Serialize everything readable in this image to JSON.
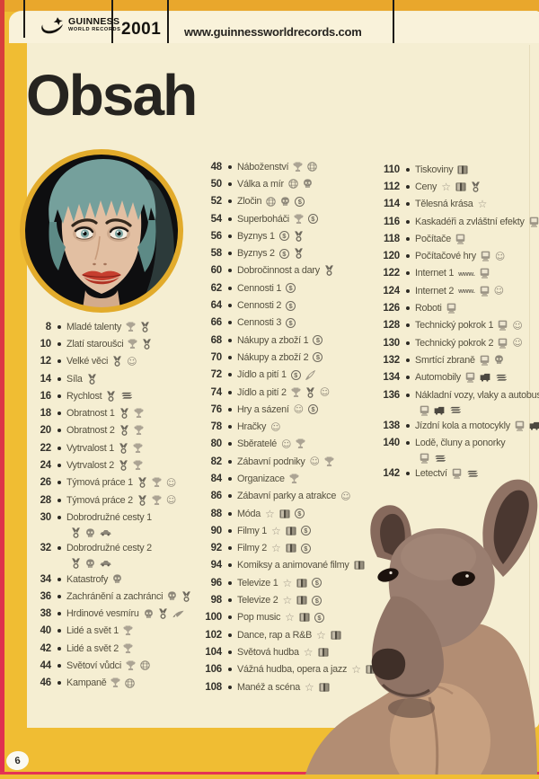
{
  "header": {
    "logo": {
      "line1": "GUINNESS",
      "line2": "WORLD RECORDS"
    },
    "year": "2001",
    "url": "www.guinnessworldrecords.com"
  },
  "page": {
    "title": "Obsah",
    "number": "6"
  },
  "colors": {
    "page_yellow": "#f0bd33",
    "cream": "#f5eed2",
    "red_edge": "#d8403a",
    "gold_ring": "#e2ab2b"
  },
  "toc": {
    "columns": [
      {
        "entries": [
          {
            "page": "8",
            "label": "Mladé talenty",
            "icons": [
              "trophy",
              "medal"
            ]
          },
          {
            "page": "10",
            "label": "Zlatí staroušci",
            "icons": [
              "trophy",
              "medal"
            ]
          },
          {
            "page": "12",
            "label": "Velké věci",
            "icons": [
              "medal",
              "smiley"
            ]
          },
          {
            "page": "14",
            "label": "Síla",
            "icons": [
              "medal"
            ]
          },
          {
            "page": "16",
            "label": "Rychlost",
            "icons": [
              "medal",
              "speed"
            ]
          },
          {
            "page": "18",
            "label": "Obratnost 1",
            "icons": [
              "medal",
              "trophy"
            ]
          },
          {
            "page": "20",
            "label": "Obratnost 2",
            "icons": [
              "medal",
              "trophy"
            ]
          },
          {
            "page": "22",
            "label": "Vytrvalost 1",
            "icons": [
              "medal",
              "trophy"
            ]
          },
          {
            "page": "24",
            "label": "Vytrvalost 2",
            "icons": [
              "medal",
              "trophy"
            ]
          },
          {
            "page": "26",
            "label": "Týmová práce 1",
            "icons": [
              "medal",
              "trophy",
              "smiley"
            ]
          },
          {
            "page": "28",
            "label": "Týmová práce 2",
            "icons": [
              "medal",
              "trophy",
              "smiley"
            ]
          },
          {
            "page": "30",
            "label": "Dobrodružné cesty 1",
            "icons": [],
            "icons_line2": [
              "medal",
              "skull",
              "car"
            ]
          },
          {
            "page": "32",
            "label": "Dobrodružné cesty 2",
            "icons": [],
            "icons_line2": [
              "medal",
              "skull",
              "car"
            ]
          },
          {
            "page": "34",
            "label": "Katastrofy",
            "icons": [
              "skull"
            ]
          },
          {
            "page": "36",
            "label": "Zachránění a zachránci",
            "icons": [
              "skull",
              "medal"
            ]
          },
          {
            "page": "38",
            "label": "Hrdinové vesmíru",
            "icons": [
              "skull",
              "medal",
              "rocket"
            ]
          },
          {
            "page": "40",
            "label": "Lidé a svět 1",
            "icons": [
              "trophy"
            ]
          },
          {
            "page": "42",
            "label": "Lidé a svět 2",
            "icons": [
              "trophy"
            ]
          },
          {
            "page": "44",
            "label": "Světoví vůdci",
            "icons": [
              "trophy",
              "globe"
            ]
          },
          {
            "page": "46",
            "label": "Kampaně",
            "icons": [
              "trophy",
              "globe"
            ]
          }
        ]
      },
      {
        "entries": [
          {
            "page": "48",
            "label": "Náboženství",
            "icons": [
              "trophy",
              "globe"
            ]
          },
          {
            "page": "50",
            "label": "Válka a mír",
            "icons": [
              "globe",
              "skull"
            ]
          },
          {
            "page": "52",
            "label": "Zločin",
            "icons": [
              "globe",
              "skull",
              "dollar"
            ]
          },
          {
            "page": "54",
            "label": "Superboháči",
            "icons": [
              "trophy",
              "dollar"
            ]
          },
          {
            "page": "56",
            "label": "Byznys 1",
            "icons": [
              "dollar",
              "medal"
            ]
          },
          {
            "page": "58",
            "label": "Byznys 2",
            "icons": [
              "dollar",
              "medal"
            ]
          },
          {
            "page": "60",
            "label": "Dobročinnost a dary",
            "icons": [
              "medal"
            ]
          },
          {
            "page": "62",
            "label": "Cennosti 1",
            "icons": [
              "dollar"
            ]
          },
          {
            "page": "64",
            "label": "Cennosti 2",
            "icons": [
              "dollar"
            ]
          },
          {
            "page": "66",
            "label": "Cennosti 3",
            "icons": [
              "dollar"
            ]
          },
          {
            "page": "68",
            "label": "Nákupy a zboží 1",
            "icons": [
              "dollar"
            ]
          },
          {
            "page": "70",
            "label": "Nákupy a zboží 2",
            "icons": [
              "dollar"
            ]
          },
          {
            "page": "72",
            "label": "Jídlo a pití 1",
            "icons": [
              "dollar",
              "pen"
            ]
          },
          {
            "page": "74",
            "label": "Jídlo a pití 2",
            "icons": [
              "trophy",
              "medal",
              "smiley"
            ]
          },
          {
            "page": "76",
            "label": "Hry a sázení",
            "icons": [
              "smiley",
              "dollar"
            ]
          },
          {
            "page": "78",
            "label": "Hračky",
            "icons": [
              "smiley"
            ]
          },
          {
            "page": "80",
            "label": "Sběratelé",
            "icons": [
              "smiley",
              "trophy"
            ]
          },
          {
            "page": "82",
            "label": "Zábavní podniky",
            "icons": [
              "smiley",
              "trophy"
            ]
          },
          {
            "page": "84",
            "label": "Organizace",
            "icons": [
              "trophy"
            ]
          },
          {
            "page": "86",
            "label": "Zábavní parky a atrakce",
            "icons": [
              "smiley"
            ]
          },
          {
            "page": "88",
            "label": "Móda",
            "icons": [
              "star",
              "film",
              "dollar"
            ]
          },
          {
            "page": "90",
            "label": "Filmy 1",
            "icons": [
              "star",
              "film",
              "dollar"
            ]
          },
          {
            "page": "92",
            "label": "Filmy 2",
            "icons": [
              "star",
              "film",
              "dollar"
            ]
          },
          {
            "page": "94",
            "label": "Komiksy a animované filmy",
            "icons": [
              "film"
            ]
          },
          {
            "page": "96",
            "label": "Televize 1",
            "icons": [
              "star",
              "film",
              "dollar"
            ]
          },
          {
            "page": "98",
            "label": "Televize 2",
            "icons": [
              "star",
              "film",
              "dollar"
            ]
          },
          {
            "page": "100",
            "label": "Pop music",
            "icons": [
              "star",
              "film",
              "dollar"
            ]
          },
          {
            "page": "102",
            "label": "Dance, rap a R&B",
            "icons": [
              "star",
              "film"
            ]
          },
          {
            "page": "104",
            "label": "Světová hudba",
            "icons": [
              "star",
              "film"
            ]
          },
          {
            "page": "106",
            "label": "Vážná hudba, opera a jazz",
            "icons": [
              "star",
              "film"
            ]
          },
          {
            "page": "108",
            "label": "Manéž a scéna",
            "icons": [
              "star",
              "film"
            ]
          }
        ]
      },
      {
        "entries": [
          {
            "page": "110",
            "label": "Tiskoviny",
            "icons": [
              "film"
            ]
          },
          {
            "page": "112",
            "label": "Ceny",
            "icons": [
              "star",
              "film",
              "medal"
            ]
          },
          {
            "page": "114",
            "label": "Tělesná krása",
            "icons": [
              "star"
            ]
          },
          {
            "page": "116",
            "label": "Kaskadéři a zvláštní efekty",
            "icons": [
              "computer",
              "film"
            ]
          },
          {
            "page": "118",
            "label": "Počítače",
            "icons": [
              "computer"
            ]
          },
          {
            "page": "120",
            "label": "Počítačové hry",
            "icons": [
              "computer",
              "smiley"
            ]
          },
          {
            "page": "122",
            "label": "Internet 1",
            "icons": [
              "www",
              "computer"
            ]
          },
          {
            "page": "124",
            "label": "Internet 2",
            "icons": [
              "www",
              "computer",
              "smiley"
            ]
          },
          {
            "page": "126",
            "label": "Roboti",
            "icons": [
              "computer"
            ]
          },
          {
            "page": "128",
            "label": "Technický pokrok 1",
            "icons": [
              "computer",
              "smiley"
            ]
          },
          {
            "page": "130",
            "label": "Technický pokrok 2",
            "icons": [
              "computer",
              "smiley"
            ]
          },
          {
            "page": "132",
            "label": "Smrtící zbraně",
            "icons": [
              "computer",
              "skull"
            ]
          },
          {
            "page": "134",
            "label": "Automobily",
            "icons": [
              "computer",
              "truck",
              "speed"
            ]
          },
          {
            "page": "136",
            "label": "Nákladní vozy, vlaky a autobusy",
            "icons": [],
            "icons_line2": [
              "computer",
              "truck",
              "speed"
            ]
          },
          {
            "page": "138",
            "label": "Jízdní kola a motocykly",
            "icons": [
              "computer",
              "truck",
              "speed"
            ]
          },
          {
            "page": "140",
            "label": "Lodě, čluny a ponorky",
            "icons": [],
            "icons_line2": [
              "computer",
              "speed"
            ]
          },
          {
            "page": "142",
            "label": "Letectví",
            "icons": [
              "computer",
              "speed"
            ]
          }
        ]
      }
    ]
  }
}
